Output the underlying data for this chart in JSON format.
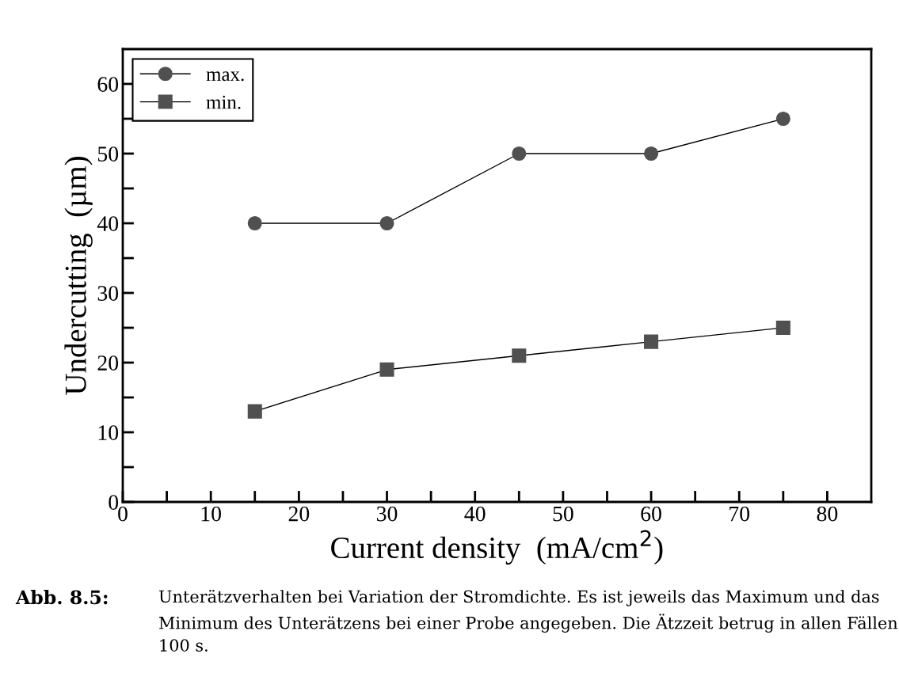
{
  "chart_data": {
    "type": "line",
    "xlabel": "Current density  (mA/cm$^{2}$)",
    "ylabel": "Undercutting  (µm)",
    "x": [
      15,
      30,
      45,
      60,
      75
    ],
    "series": [
      {
        "name": "max.",
        "color": "#505050",
        "marker": "circle",
        "values": [
          40,
          40,
          50,
          50,
          55
        ]
      },
      {
        "name": "min.",
        "color": "#505050",
        "marker": "square",
        "values": [
          13,
          19,
          21,
          23,
          25
        ]
      }
    ],
    "xlim": [
      0,
      85
    ],
    "ylim": [
      0,
      65
    ],
    "xticks": [
      0,
      {
        "value": 5,
        "label": null
      },
      10,
      {
        "value": 15,
        "label": null
      },
      20,
      {
        "value": 25,
        "label": null
      },
      30,
      {
        "value": 35,
        "label": null
      },
      40,
      {
        "value": 45,
        "label": null
      },
      50,
      {
        "value": 55,
        "label": null
      },
      60,
      {
        "value": 65,
        "label": null
      },
      70,
      {
        "value": 75,
        "label": null
      },
      80
    ],
    "yticks": [
      0,
      {
        "value": 5,
        "label": null
      },
      10,
      {
        "value": 15,
        "label": null
      },
      20,
      {
        "value": 25,
        "label": null
      },
      30,
      {
        "value": 35,
        "label": null
      },
      40,
      {
        "value": 45,
        "label": null
      },
      50,
      {
        "value": 55,
        "label": null
      },
      60
    ],
    "grid": false,
    "legend": "top left",
    "line_style": "solid",
    "annotations": [
      "Abb. 8.5:",
      "Unterätzverhalten bei Variation der Stromdichte. Es ist jeweils das Maximum und das Minimum des Unterätzens bei einer Probe angegeben. Die Ätzzeit betrug in allen Fällen 100 s."
    ]
  }
}
